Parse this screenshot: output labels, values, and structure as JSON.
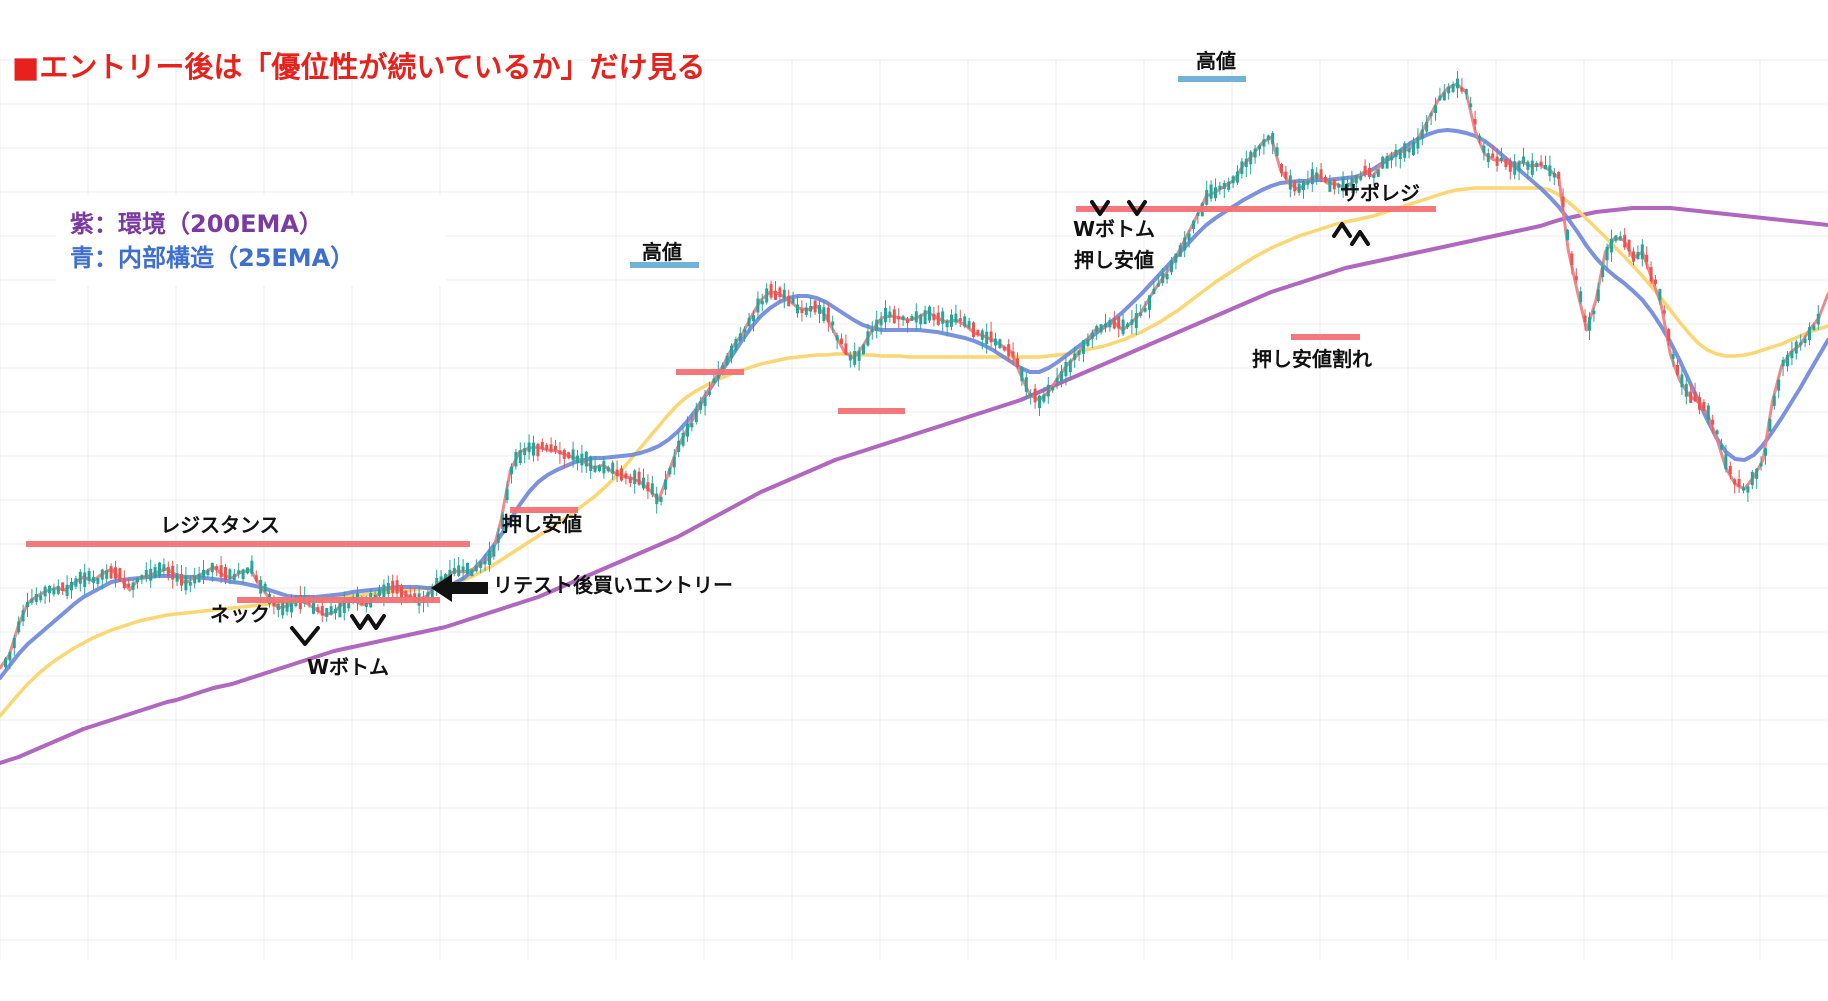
{
  "title": "■エントリー後は「優位性が続いているか」だけ見る",
  "legend": {
    "ema200": "紫：環境（200EMA）",
    "ema25": "青：内部構造（25EMA）"
  },
  "colors": {
    "title": "#e8211c",
    "ema200": "#a855b8",
    "ema25": "#6b86db",
    "ema75": "#fbd46a",
    "price": "#f07b80",
    "candle_up": "#26a69a",
    "candle_down": "#ef5350",
    "level_red": "#f47174",
    "level_blue": "#6aaed6",
    "annotation": "#111111"
  },
  "annotations": {
    "resistance": "レジスタンス",
    "neck": "ネック",
    "w_bottom_1": "Wボトム",
    "retest_entry": "リテスト後買いエントリー",
    "pullback_low_1": "押し安値",
    "high_1": "高値",
    "high_2": "高値",
    "w_bottom_2": "Wボトム",
    "pullback_low_2": "押し安値",
    "support_resistance_flip": "サポレジ",
    "pullback_low_break": "押し安値割れ"
  },
  "chart_data": {
    "type": "line",
    "title": "",
    "xlabel": "",
    "ylabel": "",
    "grid": true,
    "series": [
      {
        "key": "price",
        "values": [
          668,
          655,
          625,
          603,
          596,
          591,
          588,
          590,
          583,
          577,
          581,
          574,
          569,
          579,
          590,
          578,
          576,
          572,
          569,
          575,
          583,
          577,
          573,
          567,
          575,
          578,
          572,
          570,
          585,
          598,
          608,
          606,
          600,
          603,
          609,
          615,
          612,
          603,
          598,
          605,
          602,
          592,
          588,
          590,
          596,
          600,
          596,
          585,
          578,
          571,
          572,
          569,
          563,
          556,
          520,
          470,
          452,
          448,
          447,
          450,
          451,
          455,
          458,
          462,
          468,
          465,
          472,
          476,
          478,
          482,
          490,
          500,
          474,
          448,
          430,
          414,
          396,
          380,
          364,
          346,
          334,
          316,
          300,
          292,
          294,
          300,
          308,
          310,
          306,
          316,
          334,
          352,
          358,
          346,
          330,
          318,
          316,
          318,
          320,
          317,
          312,
          318,
          322,
          320,
          325,
          333,
          336,
          340,
          346,
          352,
          375,
          395,
          400,
          392,
          378,
          365,
          356,
          342,
          330,
          328,
          322,
          330,
          322,
          312,
          296,
          282,
          269,
          252,
          234,
          216,
          196,
          192,
          186,
          180,
          165,
          155,
          143,
          137,
          170,
          184,
          190,
          180,
          175,
          183,
          184,
          188,
          180,
          172,
          176,
          162,
          154,
          152,
          148,
          136,
          118,
          100,
          88,
          84,
          92,
          132,
          154,
          160,
          160,
          166,
          162,
          166,
          165,
          170,
          178,
          250,
          292,
          330,
          300,
          252,
          238,
          240,
          258,
          252,
          278,
          304,
          354,
          380,
          395,
          402,
          414,
          438,
          468,
          484,
          489,
          477,
          460,
          402,
          366,
          352,
          345,
          330,
          318,
          294
        ]
      },
      {
        "name": "",
        "key": "ema25",
        "values": [
          678,
          666,
          654,
          644,
          636,
          628,
          620,
          612,
          604,
          597,
          592,
          587,
          582,
          580,
          579,
          578,
          577,
          576,
          576,
          576,
          577,
          577,
          578,
          579,
          580,
          582,
          583,
          585,
          587,
          590,
          593,
          596,
          597,
          597,
          597,
          596,
          595,
          594,
          592,
          591,
          590,
          589,
          588,
          587,
          587,
          587,
          588,
          588,
          586,
          583,
          578,
          570,
          560,
          548,
          535,
          520,
          505,
          492,
          482,
          475,
          470,
          466,
          462,
          460,
          458,
          458,
          457,
          456,
          455,
          453,
          450,
          446,
          440,
          432,
          422,
          410,
          396,
          382,
          368,
          354,
          340,
          327,
          316,
          308,
          302,
          298,
          296,
          296,
          298,
          302,
          308,
          314,
          320,
          325,
          328,
          330,
          330,
          330,
          330,
          330,
          331,
          332,
          334,
          336,
          338,
          341,
          345,
          350,
          356,
          362,
          368,
          372,
          372,
          368,
          362,
          355,
          348,
          341,
          334,
          327,
          320,
          312,
          303,
          294,
          284,
          274,
          264,
          254,
          244,
          234,
          225,
          218,
          212,
          206,
          200,
          195,
          190,
          186,
          183,
          182,
          181,
          181,
          180,
          180,
          179,
          178,
          177,
          174,
          169,
          163,
          157,
          150,
          143,
          138,
          134,
          131,
          130,
          131,
          133,
          136,
          141,
          148,
          156,
          164,
          172,
          180,
          188,
          197,
          207,
          219,
          232,
          246,
          258,
          268,
          276,
          283,
          291,
          300,
          312,
          326,
          342,
          360,
          380,
          400,
          420,
          438,
          452,
          459,
          460,
          455,
          445,
          432,
          418,
          403,
          388,
          372,
          356,
          340
        ]
      },
      {
        "name": "",
        "key": "ema75",
        "values": [
          716,
          705,
          694,
          684,
          675,
          667,
          660,
          654,
          648,
          643,
          638,
          634,
          630,
          627,
          624,
          621,
          619,
          617,
          615,
          614,
          613,
          612,
          611,
          610,
          609,
          608,
          607,
          606,
          605,
          604,
          603,
          602,
          601,
          600,
          600,
          599,
          598,
          597,
          596,
          595,
          594,
          593,
          592,
          591,
          590,
          589,
          588,
          587,
          585,
          583,
          580,
          576,
          571,
          566,
          560,
          554,
          548,
          542,
          536,
          530,
          524,
          518,
          511,
          504,
          497,
          489,
          480,
          470,
          459,
          448,
          437,
          426,
          415,
          405,
          397,
          391,
          386,
          381,
          377,
          373,
          370,
          367,
          364,
          362,
          360,
          358,
          357,
          356,
          355,
          355,
          354,
          354,
          354,
          355,
          355,
          356,
          356,
          356,
          357,
          357,
          357,
          357,
          357,
          357,
          357,
          357,
          357,
          357,
          357,
          357,
          357,
          357,
          357,
          356,
          355,
          354,
          352,
          350,
          348,
          346,
          343,
          340,
          336,
          332,
          327,
          322,
          316,
          310,
          303,
          296,
          289,
          282,
          276,
          270,
          264,
          258,
          253,
          248,
          244,
          240,
          236,
          233,
          230,
          227,
          224,
          222,
          220,
          218,
          216,
          213,
          210,
          207,
          204,
          201,
          198,
          195,
          192,
          190,
          189,
          188,
          188,
          188,
          188,
          188,
          188,
          188,
          188,
          190,
          195,
          202,
          210,
          219,
          228,
          237,
          247,
          256,
          266,
          276,
          287,
          298,
          310,
          322,
          333,
          343,
          350,
          354,
          356,
          356,
          355,
          353,
          350,
          347,
          344,
          340,
          336,
          332,
          329,
          326
        ]
      },
      {
        "name": "",
        "key": "ema200",
        "values": [
          763,
          760,
          757,
          753,
          749,
          745,
          741,
          737,
          733,
          729,
          726,
          723,
          720,
          717,
          714,
          711,
          708,
          705,
          702,
          700,
          697,
          694,
          691,
          688,
          686,
          684,
          681,
          678,
          675,
          672,
          669,
          666,
          663,
          660,
          657,
          654,
          651,
          649,
          647,
          645,
          643,
          641,
          639,
          637,
          635,
          633,
          631,
          629,
          627,
          624,
          621,
          618,
          615,
          612,
          609,
          606,
          603,
          600,
          597,
          593,
          589,
          585,
          581,
          577,
          573,
          569,
          565,
          561,
          557,
          553,
          549,
          545,
          541,
          537,
          532,
          527,
          522,
          517,
          512,
          507,
          502,
          497,
          492,
          488,
          484,
          480,
          476,
          472,
          468,
          464,
          460,
          457,
          454,
          451,
          448,
          445,
          442,
          439,
          436,
          433,
          430,
          427,
          424,
          421,
          418,
          415,
          412,
          409,
          406,
          403,
          400,
          396,
          392,
          388,
          384,
          380,
          376,
          372,
          368,
          364,
          360,
          356,
          352,
          348,
          344,
          340,
          336,
          332,
          328,
          324,
          320,
          316,
          312,
          308,
          304,
          300,
          296,
          292,
          289,
          286,
          283,
          280,
          277,
          274,
          271,
          268,
          266,
          264,
          262,
          260,
          258,
          256,
          254,
          252,
          250,
          248,
          246,
          244,
          242,
          240,
          238,
          236,
          234,
          232,
          230,
          228,
          226,
          223,
          220,
          218,
          216,
          214,
          212,
          211,
          210,
          209,
          208,
          208,
          208,
          208,
          208,
          209,
          210,
          211,
          212,
          213,
          214,
          215,
          216,
          217,
          218,
          219,
          220,
          221,
          222,
          223,
          224,
          225
        ]
      }
    ],
    "levels": [
      {
        "name": "resistance",
        "y": 544,
        "x_from": 26,
        "x_to": 470,
        "color": "red"
      },
      {
        "name": "neck",
        "y": 600,
        "x_from": 237,
        "x_to": 440,
        "color": "red"
      },
      {
        "name": "pullback_low_1",
        "y": 510,
        "x_from": 510,
        "x_to": 578,
        "color": "red"
      },
      {
        "name": "pullback_low_1b",
        "y": 372,
        "x_from": 676,
        "x_to": 744,
        "color": "red"
      },
      {
        "name": "high_1",
        "y": 265,
        "x_from": 630,
        "x_to": 699,
        "color": "blue"
      },
      {
        "name": "pullback_low_1c",
        "y": 411,
        "x_from": 838,
        "x_to": 905,
        "color": "red"
      },
      {
        "name": "high_2",
        "y": 79,
        "x_from": 1178,
        "x_to": 1246,
        "color": "blue"
      },
      {
        "name": "support_resistance_flip",
        "y": 209,
        "x_from": 1076,
        "x_to": 1436,
        "color": "red"
      },
      {
        "name": "pullback_low_break",
        "y": 337,
        "x_from": 1291,
        "x_to": 1360,
        "color": "red"
      }
    ]
  }
}
